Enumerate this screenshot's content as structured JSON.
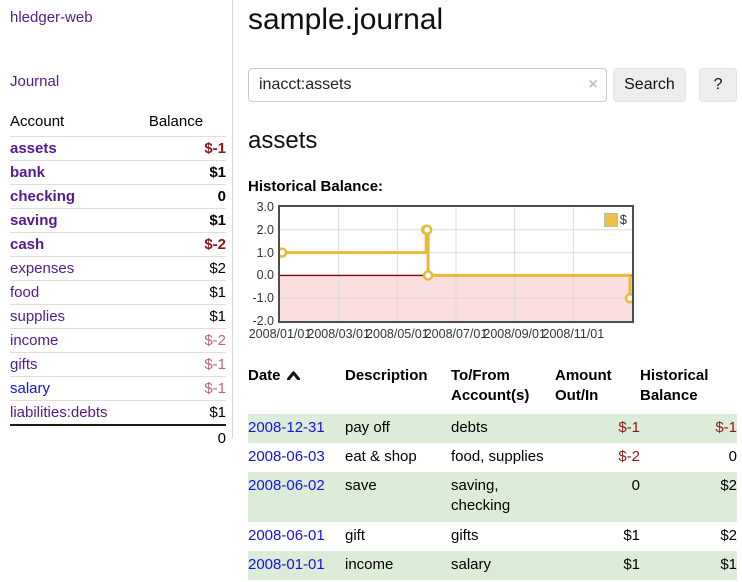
{
  "app": {
    "brand": "hledger-web",
    "nav_journal": "Journal"
  },
  "sidebar": {
    "header": {
      "account": "Account",
      "balance": "Balance"
    },
    "accounts": [
      {
        "name": "assets",
        "depth": 1,
        "balance": "$-1",
        "bold": true,
        "neg": "strong"
      },
      {
        "name": "bank",
        "depth": 2,
        "balance": "$1",
        "bold": true
      },
      {
        "name": "checking",
        "depth": 3,
        "balance": "0",
        "bold": true
      },
      {
        "name": "saving",
        "depth": 3,
        "balance": "$1",
        "bold": true
      },
      {
        "name": "cash",
        "depth": 2,
        "balance": "$-2",
        "bold": true,
        "neg": "strong"
      },
      {
        "name": "expenses",
        "depth": 1,
        "balance": "$2"
      },
      {
        "name": "food",
        "depth": 2,
        "balance": "$1"
      },
      {
        "name": "supplies",
        "depth": 2,
        "balance": "$1"
      },
      {
        "name": "income",
        "depth": 1,
        "balance": "$-2",
        "neg": "soft"
      },
      {
        "name": "gifts",
        "depth": 2,
        "balance": "$-1",
        "neg": "soft"
      },
      {
        "name": "salary",
        "depth": 2,
        "balance": "$-1",
        "neg": "soft",
        "link": "blue"
      },
      {
        "name": "liabilities:debts",
        "depth": 1,
        "balance": "$1"
      }
    ],
    "total": "0"
  },
  "header": {
    "title": "sample.journal"
  },
  "search": {
    "value": "inacct:assets",
    "clear_icon": "×",
    "button": "Search",
    "help": "?"
  },
  "account_page": {
    "heading": "assets",
    "chart_label": "Historical Balance:"
  },
  "chart_data": {
    "type": "line",
    "title": "Historical Balance",
    "steps": true,
    "series": [
      {
        "name": "$",
        "color": "#E8BA3A",
        "points": [
          [
            "2008-01-01",
            1
          ],
          [
            "2008-06-01",
            2
          ],
          [
            "2008-06-02",
            2
          ],
          [
            "2008-06-03",
            0
          ],
          [
            "2008-12-31",
            -1
          ]
        ]
      }
    ],
    "x_range": [
      "2008-01-01",
      "2008-12-31"
    ],
    "ylim": [
      -2,
      3
    ],
    "yticks": [
      "3.0",
      "2.0",
      "1.0",
      "0.0",
      "-1.0",
      "-2.0"
    ],
    "xticks": [
      "2008/01/01",
      "2008/03/01",
      "2008/05/01",
      "2008/07/01",
      "2008/09/01",
      "2008/11/01"
    ],
    "grid": true,
    "legend": {
      "label": "$",
      "position": "top-right"
    },
    "zero_line_color": "#8b0000",
    "negative_region_color": "#fbdede"
  },
  "register": {
    "columns": [
      {
        "line1": "Date",
        "line2": "",
        "sort": true
      },
      {
        "line1": "Description",
        "line2": ""
      },
      {
        "line1": "To/From",
        "line2": "Account(s)"
      },
      {
        "line1": "Amount",
        "line2": "Out/In",
        "align": "right"
      },
      {
        "line1": "Historical",
        "line2": "Balance",
        "align": "right"
      }
    ],
    "rows": [
      {
        "date": "2008-12-31",
        "description": "pay off",
        "accounts": "debts",
        "amount": "$-1",
        "amount_neg": true,
        "balance": "$-1",
        "balance_neg": true,
        "shade": true
      },
      {
        "date": "2008-06-03",
        "description": "eat & shop",
        "accounts": "food, supplies",
        "amount": "$-2",
        "amount_neg": true,
        "balance": "0",
        "balance_neg": false,
        "shade": false
      },
      {
        "date": "2008-06-02",
        "description": "save",
        "accounts": "saving, checking",
        "amount": "0",
        "amount_neg": false,
        "balance": "$2",
        "balance_neg": false,
        "shade": true
      },
      {
        "date": "2008-06-01",
        "description": "gift",
        "accounts": "gifts",
        "amount": "$1",
        "amount_neg": false,
        "balance": "$2",
        "balance_neg": false,
        "shade": false
      },
      {
        "date": "2008-01-01",
        "description": "income",
        "accounts": "salary",
        "amount": "$1",
        "amount_neg": false,
        "balance": "$1",
        "balance_neg": false,
        "shade": true
      }
    ]
  },
  "colors": {
    "accent_purple": "#551A8B",
    "link_blue": "#1414e0",
    "negative_strong": "#8b1717",
    "negative_soft": "#bd6673",
    "row_shade_green": "#ddecd9",
    "chart_line": "#E8BA3A",
    "chart_negative_fill": "#fbdede",
    "chart_zero_line": "#8b0000",
    "legend_swatch": "#EDC240"
  }
}
